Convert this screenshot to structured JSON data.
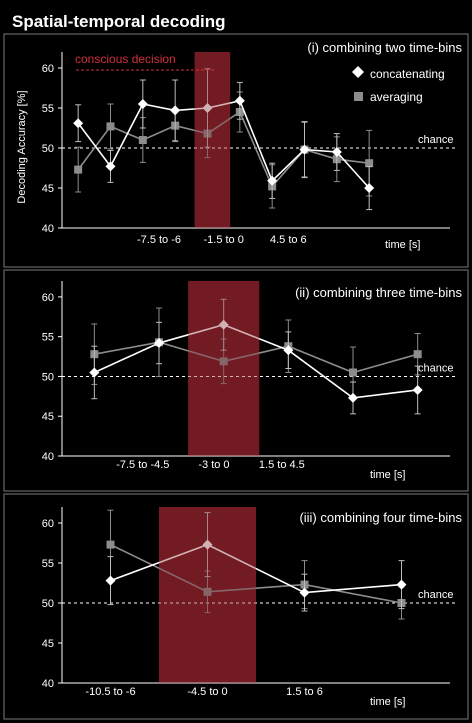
{
  "figure_title": "Spatial-temporal decoding",
  "chart_data": [
    {
      "type": "line",
      "title": "(i) combining two time-bins",
      "ylabel": "Decoding Accuracy [%]",
      "xlabel": "time [s]",
      "ylim": [
        40,
        62
      ],
      "yticks": [
        40,
        45,
        50,
        55,
        60
      ],
      "xlim": [
        0.5,
        12.5
      ],
      "x": [
        1,
        2,
        3,
        4,
        5,
        6,
        7,
        8,
        9,
        10,
        11,
        12
      ],
      "xtick_labels": [
        {
          "x": 3.5,
          "label": "-7.5 to -6"
        },
        {
          "x": 5.5,
          "label": "-1.5 to 0"
        },
        {
          "x": 7.5,
          "label": "4.5 to 6"
        }
      ],
      "chance_level": 50,
      "chance_label": "chance",
      "highlight": {
        "x_start": 4.6,
        "x_end": 5.7
      },
      "annotation": {
        "text": "conscious decision",
        "color": "#d0303a"
      },
      "legend": [
        "concatenating",
        "averaging"
      ],
      "series": [
        {
          "name": "concatenating",
          "marker": "diamond",
          "color": "#ffffff",
          "values": [
            53.1,
            47.7,
            55.5,
            54.7,
            55.0,
            55.9,
            45.9,
            49.8,
            49.5,
            45.0
          ],
          "x": [
            1,
            2,
            3,
            4,
            5,
            6,
            7,
            8,
            9,
            10
          ],
          "errors": [
            2.3,
            2.0,
            3.0,
            3.8,
            4.9,
            2.3,
            2.2,
            3.5,
            2.3,
            2.7
          ]
        },
        {
          "name": "averaging",
          "marker": "square",
          "color": "#8c8c8c",
          "values": [
            47.3,
            52.7,
            51.0,
            52.8,
            51.8,
            54.5,
            45.2,
            49.8,
            48.6,
            48.1
          ],
          "x": [
            1,
            2,
            3,
            4,
            5,
            6,
            7,
            8,
            9,
            10
          ],
          "errors": [
            2.8,
            2.8,
            2.8,
            2.0,
            3.0,
            2.5,
            2.7,
            3.4,
            2.8,
            4.1
          ]
        }
      ]
    },
    {
      "type": "line",
      "title": "(ii) combining three time-bins",
      "xlabel": "time [s]",
      "ylim": [
        40,
        62
      ],
      "yticks": [
        40,
        45,
        50,
        55,
        60
      ],
      "xlim": [
        0.5,
        6.5
      ],
      "x": [
        1,
        2,
        3,
        4,
        5,
        6
      ],
      "xtick_labels": [
        {
          "x": 1.75,
          "label": "-7.5 to -4.5"
        },
        {
          "x": 2.85,
          "label": "-3 to 0"
        },
        {
          "x": 3.9,
          "label": "1.5 to 4.5"
        }
      ],
      "chance_level": 50,
      "chance_label": "chance",
      "highlight": {
        "x_start": 2.45,
        "x_end": 3.55
      },
      "series": [
        {
          "name": "concatenating",
          "marker": "diamond",
          "color": "#ffffff",
          "values": [
            50.5,
            54.2,
            56.5,
            53.3,
            47.3,
            48.3
          ],
          "errors": [
            3.3,
            2.6,
            3.2,
            2.3,
            2.0,
            3.0
          ]
        },
        {
          "name": "averaging",
          "marker": "square",
          "color": "#8c8c8c",
          "values": [
            52.8,
            54.3,
            51.9,
            53.8,
            50.5,
            52.8
          ],
          "errors": [
            3.8,
            4.3,
            2.8,
            3.3,
            3.2,
            2.6
          ]
        }
      ]
    },
    {
      "type": "line",
      "title": "(iii) combining four time-bins",
      "xlabel": "time [s]",
      "ylim": [
        40,
        62
      ],
      "yticks": [
        40,
        45,
        50,
        55,
        60
      ],
      "xlim": [
        0.5,
        4.5
      ],
      "x": [
        1,
        2,
        3,
        4
      ],
      "xtick_labels": [
        {
          "x": 1.0,
          "label": "-10.5 to -6"
        },
        {
          "x": 2.0,
          "label": "-4.5 to 0"
        },
        {
          "x": 3.0,
          "label": "1.5 to 6"
        }
      ],
      "chance_level": 50,
      "chance_label": "chance",
      "highlight": {
        "x_start": 1.5,
        "x_end": 2.5
      },
      "series": [
        {
          "name": "concatenating",
          "marker": "diamond",
          "color": "#ffffff",
          "values": [
            52.8,
            57.3,
            51.3,
            52.3
          ],
          "errors": [
            3.0,
            4.0,
            2.3,
            3.0
          ]
        },
        {
          "name": "averaging",
          "marker": "square",
          "color": "#8c8c8c",
          "values": [
            57.3,
            51.4,
            52.3,
            50.0
          ],
          "errors": [
            4.3,
            2.6,
            3.0,
            2.0
          ]
        }
      ]
    }
  ]
}
